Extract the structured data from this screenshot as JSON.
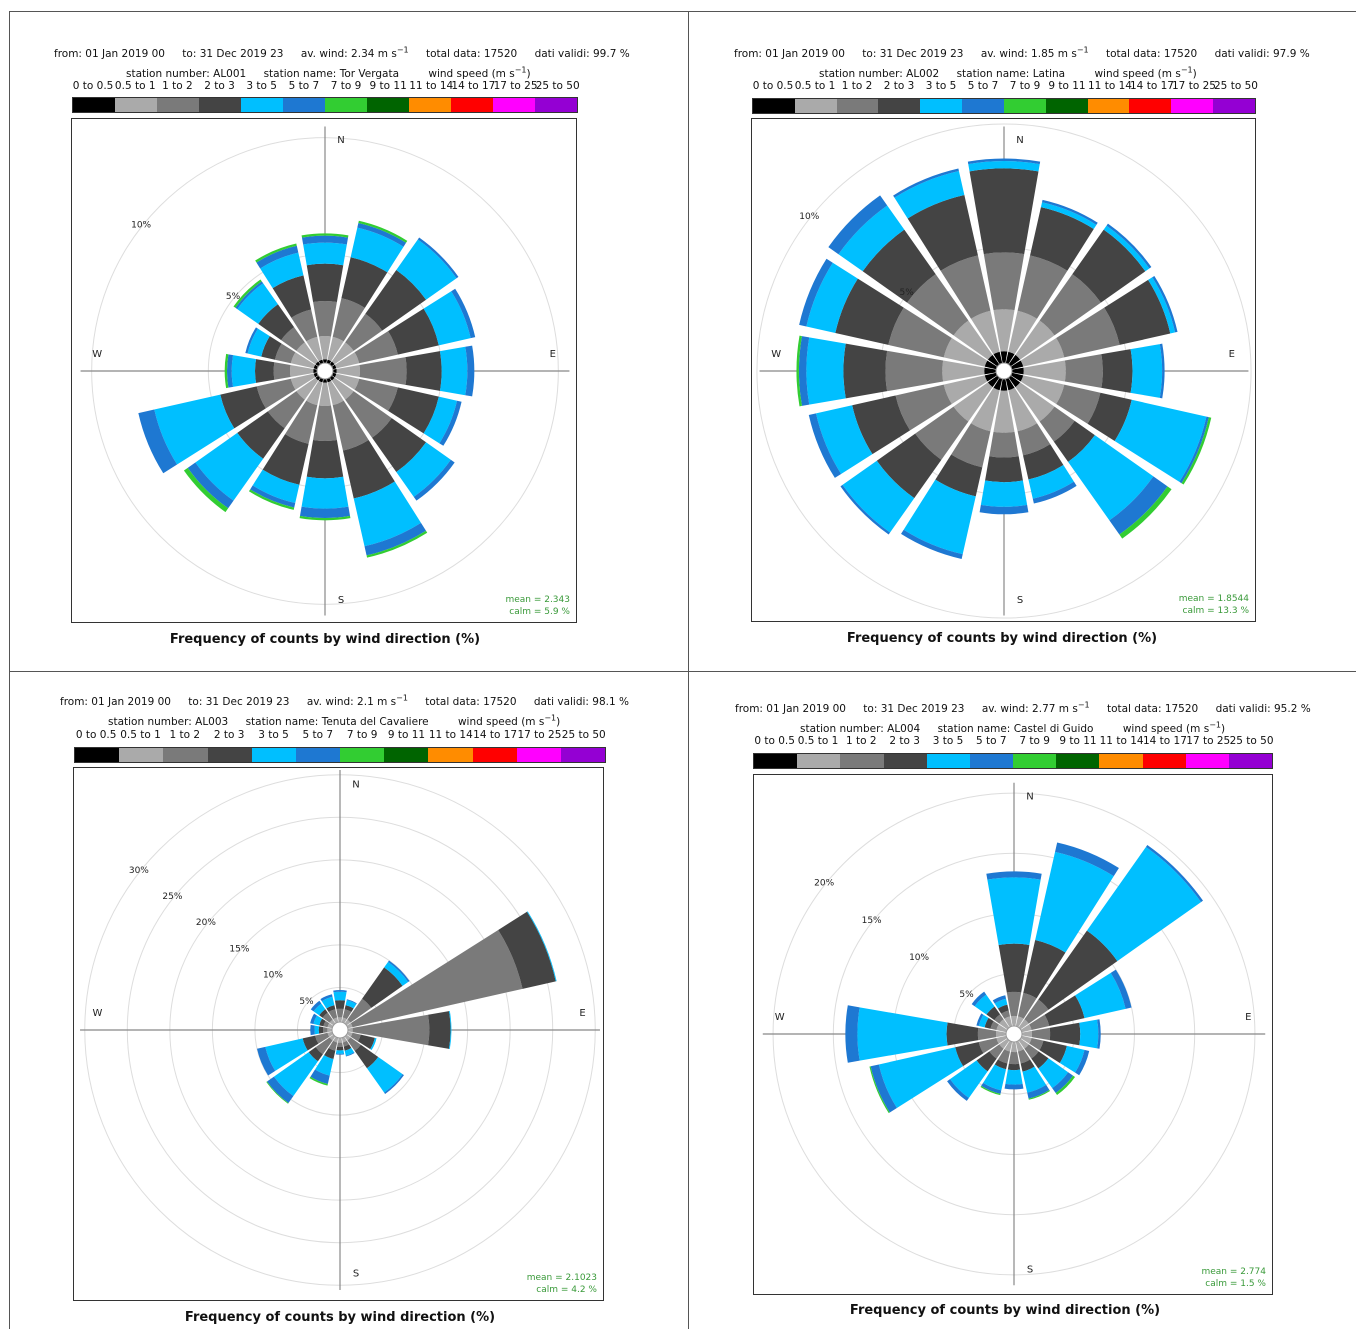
{
  "caption": "Frequency of counts by wind direction (%)",
  "speed_bins": [
    "0 to 0.5",
    "0.5 to 1",
    "1 to 2",
    "2 to 3",
    "3 to 5",
    "5 to 7",
    "7 to 9",
    "9 to 11",
    "11 to 14",
    "14 to 17",
    "17 to 25",
    "25 to 50"
  ],
  "speed_colors": [
    "#000000",
    "#aaaaaa",
    "#7a7a7a",
    "#444444",
    "#00bfff",
    "#1e78d2",
    "#32cd32",
    "#006400",
    "#ff8c00",
    "#ff0000",
    "#ff00ff",
    "#9400d3"
  ],
  "panels": [
    {
      "header": {
        "from": "from: 01 Jan 2019 00",
        "to": "to: 31 Dec 2019 23",
        "avwind": "av. wind:  2.34 m s",
        "total": "total data: 17520",
        "valid": "dati validi: 99.7 %",
        "station_number": "station number:  AL001",
        "station_name": "station name: Tor Vergata",
        "ws_label": "wind speed (m s"
      },
      "stats": {
        "mean": "mean  =   2.343",
        "calm": "calm =   5.9 %"
      },
      "compass": {
        "N": "N",
        "E": "E",
        "S": "S",
        "W": "W"
      }
    },
    {
      "header": {
        "from": "from: 01 Jan 2019 00",
        "to": "to: 31 Dec 2019 23",
        "avwind": "av. wind:  1.85 m s",
        "total": "total data: 17520",
        "valid": "dati validi: 97.9 %",
        "station_number": "station number:  AL002",
        "station_name": "station name: Latina",
        "ws_label": "wind speed (m s"
      },
      "stats": {
        "mean": "mean  =   1.8544",
        "calm": "calm =   13.3 %"
      },
      "compass": {
        "N": "N",
        "E": "E",
        "S": "S",
        "W": "W"
      }
    },
    {
      "header": {
        "from": "from: 01 Jan 2019 00",
        "to": "to: 31 Dec 2019 23",
        "avwind": "av. wind:  2.1 m s",
        "total": "total data: 17520",
        "valid": "dati validi: 98.1 %",
        "station_number": "station number:  AL003",
        "station_name": "station name: Tenuta del Cavaliere",
        "ws_label": "wind speed (m s"
      },
      "stats": {
        "mean": "mean  =   2.1023",
        "calm": "calm =   4.2 %"
      },
      "compass": {
        "N": "N",
        "E": "E",
        "S": "S",
        "W": "W"
      }
    },
    {
      "header": {
        "from": "from: 01 Jan 2019 00",
        "to": "to: 31 Dec 2019 23",
        "avwind": "av. wind:  2.77 m s",
        "total": "total data: 17520",
        "valid": "dati validi: 95.2 %",
        "station_number": "station number:  AL004",
        "station_name": "station name: Castel di Guido",
        "ws_label": "wind speed (m s"
      },
      "stats": {
        "mean": "mean  =   2.774",
        "calm": "calm =   1.5 %"
      },
      "compass": {
        "N": "N",
        "E": "E",
        "S": "S",
        "W": "W"
      }
    }
  ],
  "chart_data": [
    {
      "type": "windrose",
      "station": "AL001",
      "directions": [
        0,
        22.5,
        45,
        67.5,
        90,
        112.5,
        135,
        157.5,
        180,
        202.5,
        225,
        247.5,
        270,
        292.5,
        315,
        337.5
      ],
      "rticks": [
        5,
        10
      ],
      "rmax": 10.8,
      "calm_pct": 5.9,
      "cumulative_pct": [
        [
          0.5,
          1.5,
          3.0,
          4.6,
          5.5,
          5.8,
          5.9
        ],
        [
          0.5,
          1.5,
          3.2,
          5.0,
          6.3,
          6.5,
          6.6
        ],
        [
          0.5,
          1.5,
          3.0,
          5.3,
          6.9,
          7.0
        ],
        [
          0.5,
          1.5,
          3.2,
          5.0,
          6.4,
          6.6
        ],
        [
          0.5,
          1.5,
          3.5,
          5.0,
          6.1,
          6.4
        ],
        [
          0.5,
          1.5,
          3.2,
          5.0,
          5.8,
          6.0
        ],
        [
          0.5,
          1.5,
          3.5,
          5.3,
          6.6,
          6.8
        ],
        [
          0.5,
          1.5,
          3.5,
          5.6,
          7.7,
          8.1,
          8.2
        ],
        [
          0.5,
          1.5,
          3.0,
          4.6,
          5.9,
          6.3,
          6.4
        ],
        [
          0.5,
          1.5,
          3.2,
          5.0,
          5.8,
          6.0,
          6.1
        ],
        [
          0.5,
          1.5,
          3.0,
          4.6,
          6.8,
          7.2,
          7.4
        ],
        [
          0.5,
          1.5,
          3.0,
          4.6,
          7.5,
          8.2
        ],
        [
          0.5,
          1.5,
          2.2,
          3.0,
          4.0,
          4.2,
          4.3
        ],
        [
          0.5,
          1.5,
          2.2,
          2.8,
          3.4,
          3.5
        ],
        [
          0.5,
          1.5,
          2.3,
          3.5,
          4.6,
          4.7,
          4.8
        ],
        [
          0.5,
          1.5,
          2.7,
          4.2,
          5.2,
          5.5,
          5.6
        ]
      ]
    },
    {
      "type": "windrose",
      "station": "AL002",
      "directions": [
        0,
        22.5,
        45,
        67.5,
        90,
        112.5,
        135,
        157.5,
        180,
        202.5,
        225,
        247.5,
        270,
        292.5,
        315,
        337.5
      ],
      "rticks": [
        5,
        10
      ],
      "rmax": 10.2,
      "calm_pct": 13.3,
      "cumulative_pct": [
        [
          0.8,
          2.5,
          4.8,
          8.2,
          8.5,
          8.6
        ],
        [
          0.8,
          2.5,
          4.8,
          6.8,
          7.0,
          7.1
        ],
        [
          0.8,
          2.5,
          4.8,
          7.0,
          7.2,
          7.3
        ],
        [
          0.8,
          2.5,
          4.8,
          6.9,
          7.1,
          7.2
        ],
        [
          0.8,
          2.5,
          4.0,
          5.2,
          6.4,
          6.5
        ],
        [
          0.8,
          2.5,
          4.0,
          5.3,
          8.4,
          8.5,
          8.6
        ],
        [
          0.8,
          2.5,
          3.5,
          4.5,
          7.4,
          8.1,
          8.3
        ],
        [
          0.8,
          2.5,
          3.5,
          4.5,
          5.3,
          5.5
        ],
        [
          0.8,
          2.5,
          3.5,
          4.5,
          5.5,
          5.8
        ],
        [
          0.8,
          2.5,
          4.0,
          5.2,
          7.6,
          7.8
        ],
        [
          0.8,
          2.5,
          4.4,
          6.3,
          8.0,
          8.1
        ],
        [
          0.8,
          2.5,
          4.5,
          6.3,
          7.8,
          8.1
        ],
        [
          0.8,
          2.5,
          4.8,
          6.5,
          8.0,
          8.3,
          8.4
        ],
        [
          0.8,
          2.5,
          4.8,
          7.0,
          8.2,
          8.5
        ],
        [
          0.8,
          2.5,
          4.8,
          7.0,
          8.2,
          8.7
        ],
        [
          0.8,
          2.5,
          4.8,
          7.3,
          8.3,
          8.4
        ]
      ]
    },
    {
      "type": "windrose",
      "station": "AL003",
      "directions": [
        0,
        22.5,
        45,
        67.5,
        90,
        112.5,
        135,
        157.5,
        180,
        202.5,
        225,
        247.5,
        270,
        292.5,
        315,
        337.5
      ],
      "rticks": [
        5,
        10,
        15,
        20,
        25,
        30
      ],
      "rmax": 31.5,
      "calm_pct": 4.2,
      "cumulative_pct": [
        [
          0.5,
          1.5,
          2.5,
          3.5,
          4.5,
          4.7
        ],
        [
          0.5,
          1.5,
          2.5,
          3.0,
          3.6,
          3.7
        ],
        [
          0.5,
          1.5,
          4.5,
          9.0,
          9.8,
          10.0
        ],
        [
          0.5,
          1.5,
          22.0,
          26.0,
          26.1
        ],
        [
          0.5,
          1.5,
          10.5,
          13.0,
          13.1
        ],
        [
          0.5,
          1.5,
          2.5,
          4.2,
          4.4
        ],
        [
          0.5,
          1.5,
          3.0,
          5.5,
          9.0,
          9.2
        ],
        [
          0.5,
          1.5,
          2.0,
          2.5,
          3.1,
          3.2
        ],
        [
          0.5,
          1.5,
          2.0,
          2.4,
          2.8,
          2.9
        ],
        [
          0.5,
          1.5,
          2.5,
          3.5,
          5.5,
          6.5,
          6.7
        ],
        [
          0.5,
          1.5,
          3.5,
          4.5,
          9.5,
          10.5,
          10.6
        ],
        [
          0.5,
          1.5,
          3.0,
          4.5,
          9.0,
          10.0
        ],
        [
          0.5,
          1.5,
          2.0,
          2.5,
          3.0,
          3.5
        ],
        [
          0.5,
          1.5,
          2.0,
          2.5,
          3.2,
          3.6
        ],
        [
          0.5,
          1.5,
          2.5,
          3.0,
          3.8,
          4.2
        ],
        [
          0.5,
          1.5,
          2.5,
          3.0,
          4.0,
          4.3
        ]
      ]
    },
    {
      "type": "windrose",
      "station": "AL004",
      "directions": [
        0,
        22.5,
        45,
        67.5,
        90,
        112.5,
        135,
        157.5,
        180,
        202.5,
        225,
        247.5,
        270,
        292.5,
        315,
        337.5
      ],
      "rticks": [
        5,
        10,
        15,
        20
      ],
      "rmax": 21.5,
      "calm_pct": 1.5,
      "cumulative_pct": [
        [
          0.3,
          1.5,
          3.5,
          7.5,
          13.0,
          13.5
        ],
        [
          0.3,
          1.5,
          3.5,
          8.0,
          15.5,
          16.3
        ],
        [
          0.3,
          1.5,
          3.5,
          10.5,
          19.0,
          19.2
        ],
        [
          0.3,
          1.5,
          3.0,
          6.0,
          9.5,
          10.0
        ],
        [
          0.3,
          1.5,
          3.0,
          5.5,
          7.0,
          7.2
        ],
        [
          0.3,
          1.5,
          2.5,
          4.5,
          6.0,
          6.4
        ],
        [
          0.3,
          1.5,
          2.5,
          3.5,
          5.5,
          6.0,
          6.2
        ],
        [
          0.3,
          1.5,
          2.5,
          3.2,
          5.0,
          5.5,
          5.6
        ],
        [
          0.3,
          1.5,
          2.5,
          3.0,
          4.2,
          4.6
        ],
        [
          0.3,
          1.5,
          2.5,
          3.0,
          4.8,
          5.1,
          5.2
        ],
        [
          0.3,
          1.5,
          2.5,
          3.8,
          6.5,
          6.8
        ],
        [
          0.3,
          1.5,
          3.0,
          5.0,
          11.5,
          12.2,
          12.3
        ],
        [
          0.3,
          1.5,
          3.0,
          5.6,
          13.0,
          14.0
        ],
        [
          0.3,
          1.5,
          2.0,
          2.5,
          3.0,
          3.2
        ],
        [
          0.3,
          1.5,
          2.0,
          2.8,
          4.0,
          4.3
        ],
        [
          0.3,
          1.5,
          2.0,
          2.5,
          3.0,
          3.3
        ]
      ]
    }
  ]
}
